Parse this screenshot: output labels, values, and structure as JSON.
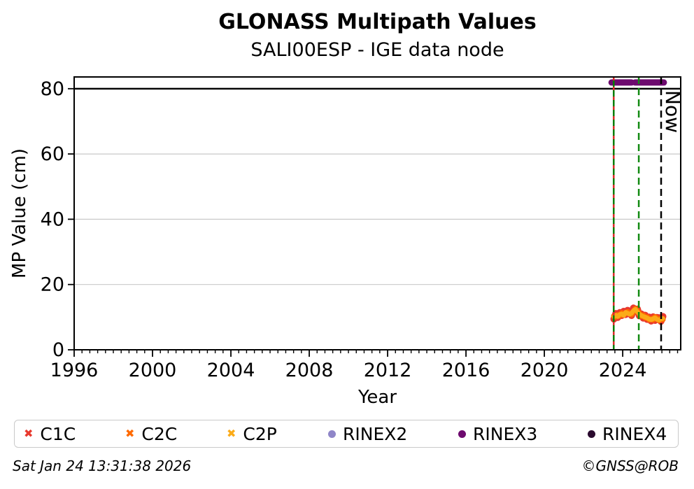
{
  "chart_data": {
    "type": "scatter",
    "title": "GLONASS Multipath Values",
    "subtitle": "SALI00ESP - IGE data node",
    "xlabel": "Year",
    "ylabel": "MP Value (cm)",
    "xlim": [
      1996,
      2026.96
    ],
    "ylim": [
      0,
      83.6
    ],
    "x_ticks": [
      1996,
      2000,
      2004,
      2008,
      2012,
      2016,
      2020,
      2024
    ],
    "y_ticks": [
      0,
      20,
      40,
      60,
      80
    ],
    "x_minor_step": 0.4,
    "grid": "horizontal-only",
    "grid_color": "#c9c9c9",
    "threshold_line_y": 80,
    "series": [
      {
        "name": "C1C",
        "marker": "x",
        "color": "#e8392e",
        "x_start": 2023.55,
        "x_step": 0.1,
        "y": [
          9.4,
          11.1,
          9.9,
          11.4,
          10.5,
          11.8,
          10.8,
          12.1,
          11.6,
          10.5,
          12.8,
          11.9,
          12.5,
          10.4,
          11.0,
          9.7,
          10.6,
          9.3,
          10.0,
          8.8,
          10.1,
          9.0,
          9.9,
          9.8,
          8.7,
          10.2
        ]
      },
      {
        "name": "C2C",
        "marker": "x",
        "color": "#ff6a00",
        "x_start": 2023.55,
        "x_step": 0.1,
        "y": [
          10.4,
          10.1,
          10.7,
          10.4,
          11.3,
          10.8,
          11.2,
          11.6,
          11.1,
          10.8,
          11.7,
          12.6,
          11.9,
          11.2,
          10.3,
          10.6,
          9.8,
          10.0,
          9.2,
          9.5,
          9.2,
          10.1,
          9.6,
          9.0,
          9.7,
          9.3
        ]
      },
      {
        "name": "C2P",
        "marker": "x",
        "color": "#fbab18",
        "x_start": 2023.55,
        "x_step": 0.1,
        "y": [
          10.1,
          10.6,
          10.2,
          10.8,
          11.0,
          10.5,
          11.5,
          11.2,
          10.9,
          11.2,
          12.0,
          12.4,
          11.6,
          10.9,
          10.5,
          10.2,
          10.0,
          9.7,
          9.4,
          9.2,
          9.5,
          9.8,
          9.3,
          9.1,
          9.4,
          9.6
        ]
      },
      {
        "name": "RINEX2",
        "marker": "dot",
        "color": "#8f86c8",
        "y": []
      },
      {
        "name": "RINEX3",
        "marker": "dot",
        "color": "#6d0a6e",
        "value": 81.9,
        "segments": [
          [
            2023.43,
            2024.45
          ],
          [
            2024.63,
            2026.1
          ]
        ]
      },
      {
        "name": "RINEX4",
        "marker": "dot",
        "color": "#2a0a2e",
        "y": []
      }
    ],
    "events": [
      {
        "x": 2023.54,
        "style": "solid",
        "color": "#007d00",
        "overlay_color": "#dc2a2a",
        "label": ""
      },
      {
        "x": 2024.82,
        "style": "dashed",
        "color": "#128a12",
        "label": ""
      },
      {
        "x": 2025.96,
        "style": "dashed",
        "color": "#000000",
        "label": "Now"
      }
    ]
  },
  "footer": {
    "timestamp": "Sat Jan 24 13:31:38 2026",
    "credit": "©GNSS@ROB"
  }
}
